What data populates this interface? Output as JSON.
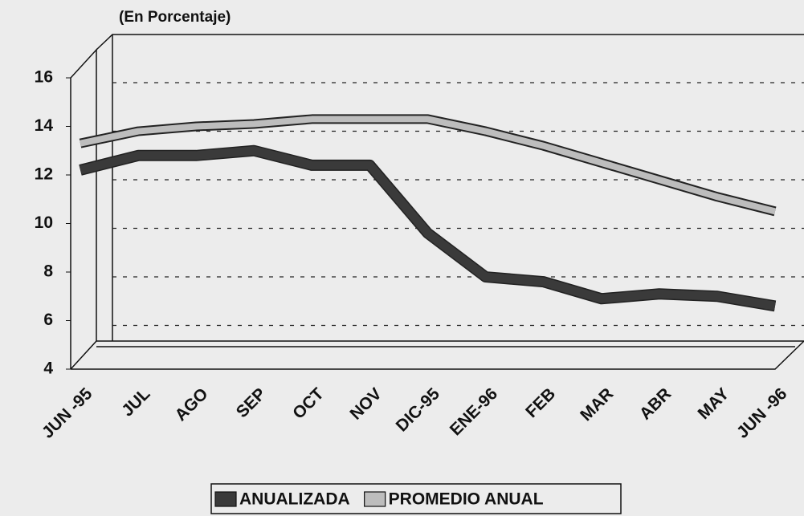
{
  "chart_data": {
    "type": "line",
    "subtitle": "(En Porcentaje)",
    "categories": [
      "JUN -95",
      "JUL",
      "AGO",
      "SEP",
      "OCT",
      "NOV",
      "DIC-95",
      "ENE-96",
      "FEB",
      "MAR",
      "ABR",
      "MAY",
      "JUN -96"
    ],
    "series": [
      {
        "name": "ANUALIZADA",
        "color": "#3a3a3a",
        "values": [
          12.2,
          12.8,
          12.8,
          13.0,
          12.4,
          12.4,
          9.6,
          7.8,
          7.6,
          6.9,
          7.1,
          7.0,
          6.6
        ]
      },
      {
        "name": "PROMEDIO ANUAL",
        "color": "#bdbdbd",
        "values": [
          13.3,
          13.8,
          14.0,
          14.1,
          14.3,
          14.3,
          14.3,
          13.8,
          13.2,
          12.5,
          11.8,
          11.1,
          10.5
        ]
      }
    ],
    "ylim": [
      4,
      16
    ],
    "yticks": [
      4,
      6,
      8,
      10,
      12,
      14,
      16
    ],
    "grid": true
  }
}
